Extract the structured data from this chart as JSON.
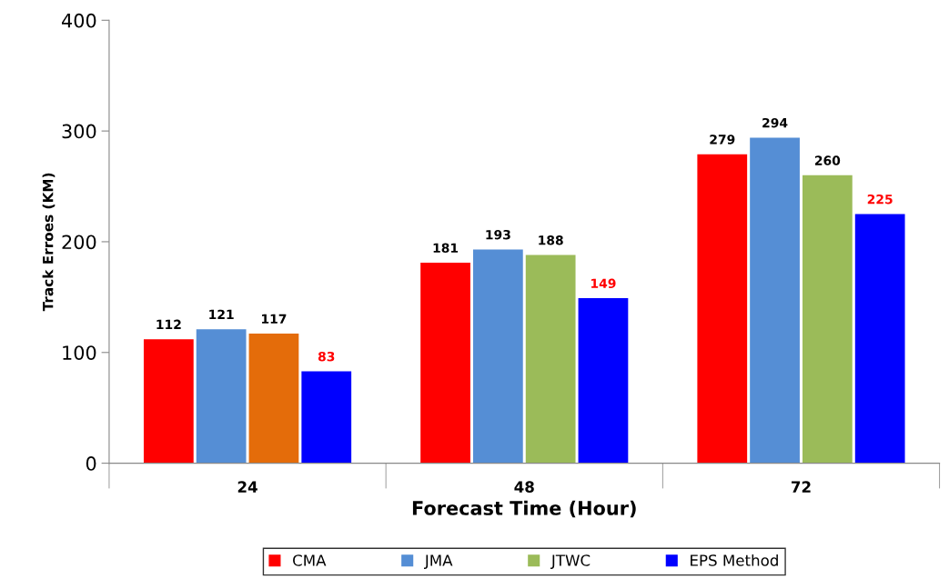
{
  "chart_data": {
    "type": "bar",
    "xlabel": "Forecast Time (Hour)",
    "ylabel": "Track Erroes (KM)",
    "categories": [
      "24",
      "48",
      "72"
    ],
    "series": [
      {
        "name": "CMA",
        "color": "#ff0000",
        "values": [
          112,
          181,
          279
        ]
      },
      {
        "name": "JMA",
        "color": "#558ed5",
        "values": [
          121,
          193,
          294
        ]
      },
      {
        "name": "JTWC",
        "color": "#9bbb59",
        "colors": [
          "#e46c0a",
          "#9bbb59",
          "#9bbb59"
        ],
        "values": [
          117,
          188,
          260
        ]
      },
      {
        "name": "EPS Method",
        "color": "#0000ff",
        "values": [
          83,
          149,
          225
        ]
      }
    ],
    "ylim": [
      0,
      400
    ],
    "yticks": [
      0,
      100,
      200,
      300,
      400
    ],
    "grid": false,
    "legend": "bottom",
    "data_labels": true
  }
}
